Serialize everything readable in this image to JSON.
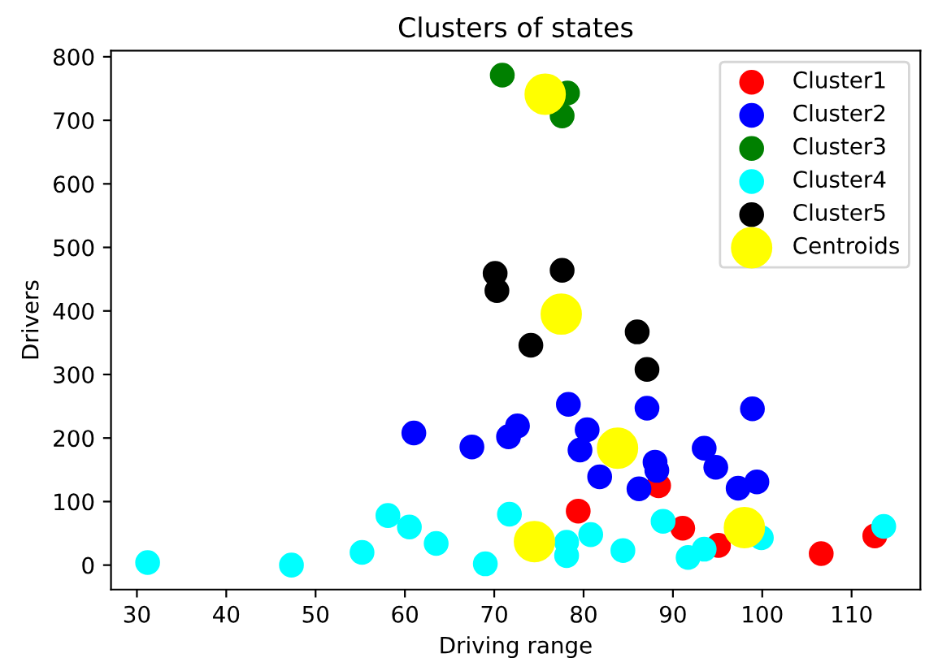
{
  "chart_data": {
    "type": "scatter",
    "title": "Clusters of states",
    "xlabel": "Driving range",
    "ylabel": "Drivers",
    "xlim": [
      27.1,
      117.7
    ],
    "ylim": [
      -38.5,
      809.6
    ],
    "xticks": [
      30,
      40,
      50,
      60,
      70,
      80,
      90,
      100,
      110
    ],
    "yticks": [
      0,
      100,
      200,
      300,
      400,
      500,
      600,
      700,
      800
    ],
    "legend": "top right",
    "marker": "circle",
    "grid": false,
    "series": [
      {
        "name": "Cluster1",
        "color": "#ff0000",
        "x": [
          88.4,
          79.4,
          91.1,
          95.1,
          106.6,
          112.6
        ],
        "values": [
          125,
          85,
          58,
          31,
          18,
          46
        ]
      },
      {
        "name": "Cluster2",
        "color": "#0000ff",
        "x": [
          78.3,
          80.4,
          79.6,
          81.8,
          86.2,
          88.0,
          88.2,
          87.1,
          93.5,
          94.8,
          97.3,
          99.4,
          98.9,
          72.6,
          71.6,
          61.0,
          67.5
        ],
        "values": [
          253,
          213,
          181,
          139,
          120,
          162,
          149,
          247,
          184,
          154,
          121,
          131,
          246,
          219,
          202,
          208,
          186
        ]
      },
      {
        "name": "Cluster3",
        "color": "#008000",
        "x": [
          70.9,
          78.2,
          77.6
        ],
        "values": [
          771,
          743,
          707
        ]
      },
      {
        "name": "Cluster4",
        "color": "#00ffff",
        "x": [
          31.2,
          47.3,
          55.2,
          58.1,
          60.5,
          63.5,
          69.0,
          71.7,
          78.1,
          78.1,
          80.8,
          84.4,
          88.9,
          91.7,
          93.5,
          99.9,
          113.6
        ],
        "values": [
          4,
          0,
          20,
          78,
          60,
          34,
          2,
          80,
          36,
          15,
          48,
          23,
          69,
          12,
          25,
          43,
          61
        ]
      },
      {
        "name": "Cluster5",
        "color": "#000000",
        "x": [
          70.1,
          70.3,
          77.6,
          74.1,
          86.0,
          87.1
        ],
        "values": [
          459,
          432,
          464,
          346,
          367,
          308
        ]
      },
      {
        "name": "Centroids",
        "color": "#ffff00",
        "type": "bubble",
        "sizes": [
          1,
          1,
          1,
          1,
          1
        ],
        "x": [
          75.7,
          77.5,
          83.8,
          74.5,
          98.0
        ],
        "values": [
          741,
          395,
          184,
          37,
          59
        ]
      }
    ]
  }
}
